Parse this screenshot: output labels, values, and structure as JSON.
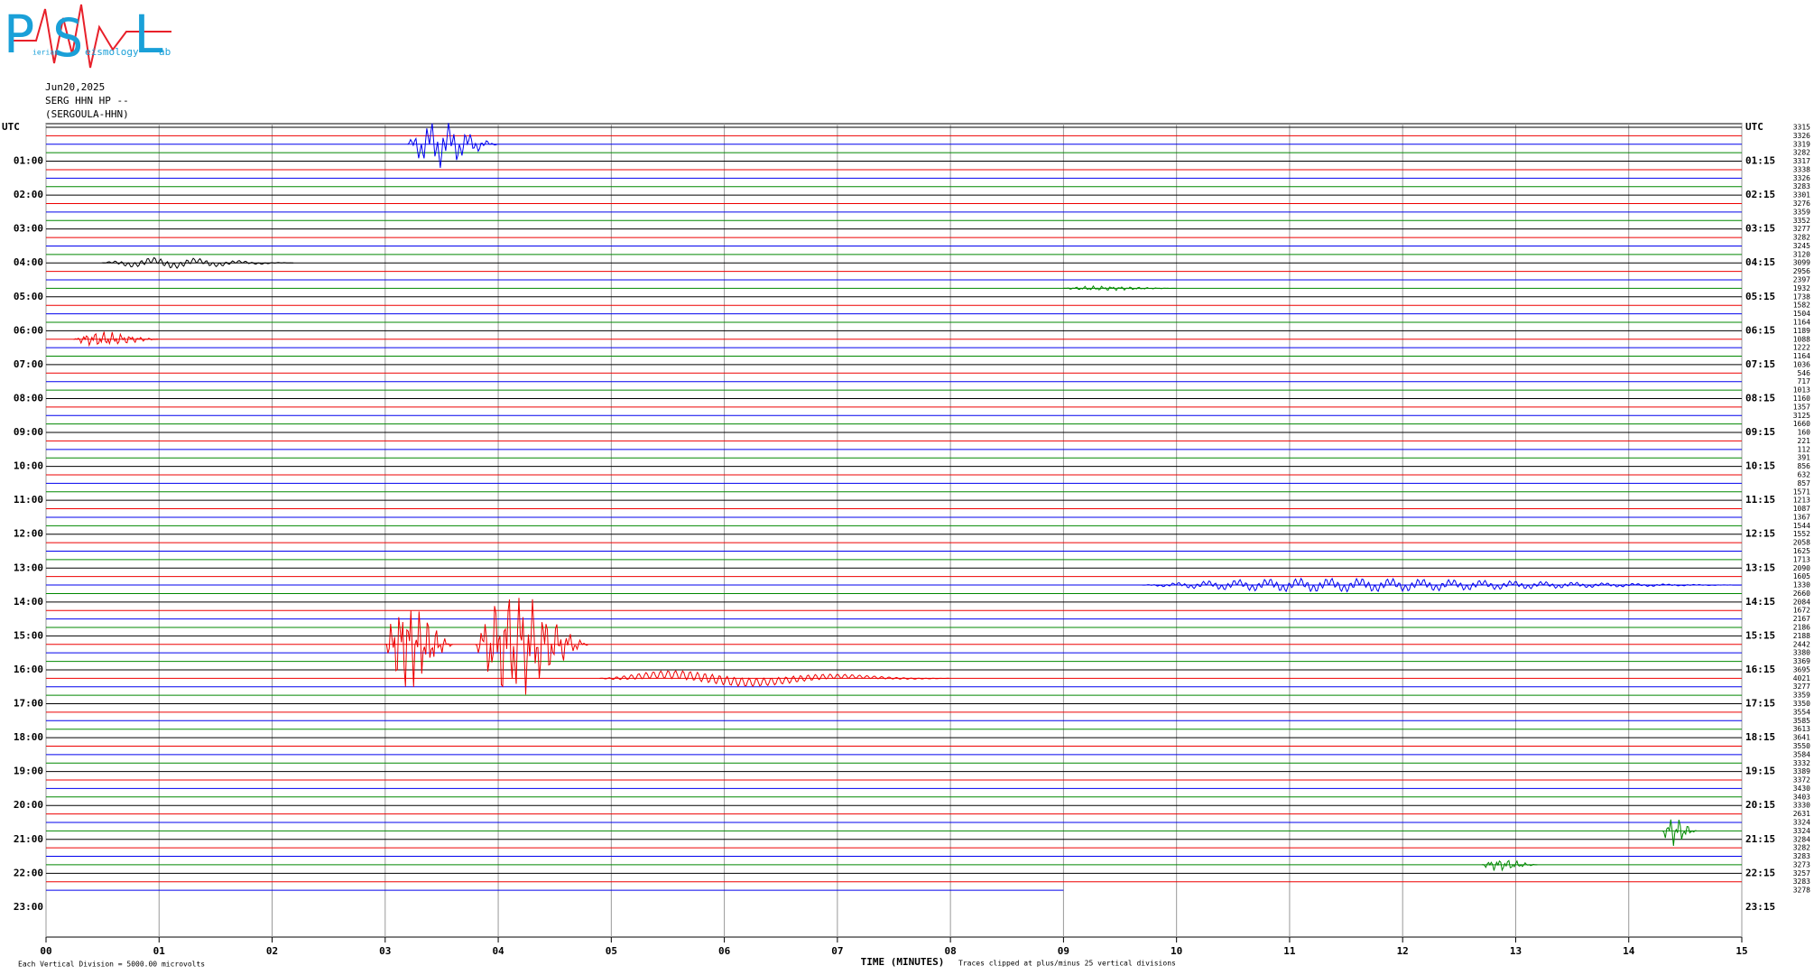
{
  "logo": {
    "letters": [
      "P",
      "S",
      "L"
    ],
    "words": [
      "ierian",
      "eismology",
      "ab"
    ]
  },
  "header": {
    "date": "Jun20,2025",
    "station": "SERG HHN HP --",
    "name": "(SERGOULA-HHN)"
  },
  "left_labels": [
    "UTC",
    "01:00",
    "02:00",
    "03:00",
    "04:00",
    "05:00",
    "06:00",
    "07:00",
    "08:00",
    "09:00",
    "10:00",
    "11:00",
    "12:00",
    "13:00",
    "14:00",
    "15:00",
    "16:00",
    "17:00",
    "18:00",
    "19:00",
    "20:00",
    "21:00",
    "22:00",
    "23:00"
  ],
  "right_labels": [
    "UTC",
    "01:15",
    "02:15",
    "03:15",
    "04:15",
    "05:15",
    "06:15",
    "07:15",
    "08:15",
    "09:15",
    "10:15",
    "11:15",
    "12:15",
    "13:15",
    "14:15",
    "15:15",
    "16:15",
    "17:15",
    "18:15",
    "19:15",
    "20:15",
    "21:15",
    "22:15",
    "23:15"
  ],
  "trace_values": [
    3315,
    3326,
    3319,
    3282,
    3317,
    3338,
    3326,
    3283,
    3301,
    3276,
    3359,
    3352,
    3277,
    3282,
    3245,
    3120,
    3099,
    2956,
    2397,
    1932,
    1738,
    1582,
    1504,
    1164,
    1189,
    1088,
    1222,
    1164,
    1036,
    546,
    717,
    1013,
    1160,
    1357,
    3125,
    1660,
    160,
    221,
    112,
    391,
    856,
    632,
    857,
    1571,
    1213,
    1087,
    1367,
    1544,
    1552,
    2058,
    1625,
    1713,
    2090,
    1605,
    1330,
    2660,
    2084,
    1672,
    2167,
    2186,
    2188,
    2442,
    3380,
    3369,
    3695,
    4021,
    3277,
    3359,
    3350,
    3554,
    3585,
    3613,
    3641,
    3550,
    3584,
    3332,
    3389,
    3372,
    3430,
    3403,
    3330,
    2631,
    3324,
    3324,
    3284,
    3282,
    3283,
    3273,
    3257,
    3283,
    3278
  ],
  "x_axis": {
    "labels": [
      "00",
      "01",
      "02",
      "03",
      "04",
      "05",
      "06",
      "07",
      "08",
      "09",
      "10",
      "11",
      "12",
      "13",
      "14",
      "15"
    ],
    "title": "TIME (MINUTES)"
  },
  "footer": {
    "scale": "Each Vertical Division = 5000.00 microvolts",
    "note": "Traces clipped at plus/minus 25 vertical divisions"
  }
}
